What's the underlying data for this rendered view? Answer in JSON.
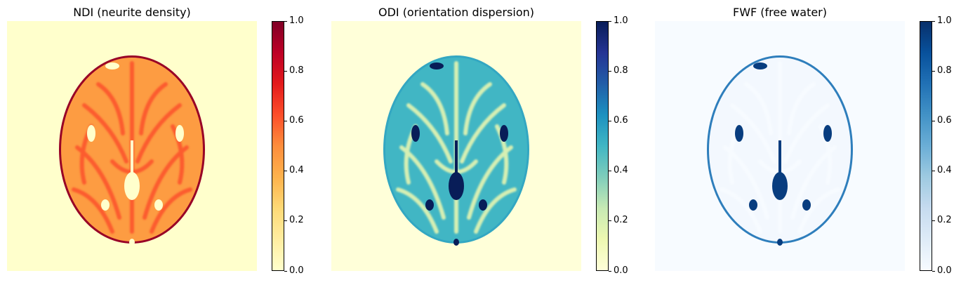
{
  "chart_data": [
    {
      "type": "heatmap",
      "title": "NDI (neurite density)",
      "colormap": "YlOrRd",
      "colormap_stops": [
        "#ffffcc",
        "#ffeda0",
        "#fed976",
        "#feb24c",
        "#fd8d3c",
        "#fc4e2a",
        "#e31a1c",
        "#bd0026",
        "#800026"
      ],
      "background_value": 0.0,
      "tissue_value": 0.45,
      "tract_value": 0.6,
      "edge_value": 0.95,
      "csf_value": 0.0,
      "colorbar": {
        "vmin": 0.0,
        "vmax": 1.0,
        "ticks": [
          "0.0",
          "0.2",
          "0.4",
          "0.6",
          "0.8",
          "1.0"
        ]
      }
    },
    {
      "type": "heatmap",
      "title": "ODI (orientation dispersion)",
      "colormap": "YlGnBu",
      "colormap_stops": [
        "#ffffd9",
        "#edf8b1",
        "#c7e9b4",
        "#7fcdbb",
        "#41b6c4",
        "#1d91c0",
        "#225ea8",
        "#253494",
        "#081d58"
      ],
      "background_value": 0.0,
      "tissue_value": 0.5,
      "tract_value": 0.2,
      "edge_value": 0.55,
      "csf_value": 1.0,
      "colorbar": {
        "vmin": 0.0,
        "vmax": 1.0,
        "ticks": [
          "0.0",
          "0.2",
          "0.4",
          "0.6",
          "0.8",
          "1.0"
        ]
      }
    },
    {
      "type": "heatmap",
      "title": "FWF (free water)",
      "colormap": "Blues",
      "colormap_stops": [
        "#f7fbff",
        "#deebf7",
        "#c6dbef",
        "#9ecae1",
        "#6baed6",
        "#4292c6",
        "#2171b5",
        "#08519c",
        "#08306b"
      ],
      "background_value": 0.0,
      "tissue_value": 0.02,
      "tract_value": 0.0,
      "edge_value": 0.7,
      "csf_value": 0.95,
      "colorbar": {
        "vmin": 0.0,
        "vmax": 1.0,
        "ticks": [
          "0.0",
          "0.2",
          "0.4",
          "0.6",
          "0.8",
          "1.0"
        ]
      }
    }
  ]
}
